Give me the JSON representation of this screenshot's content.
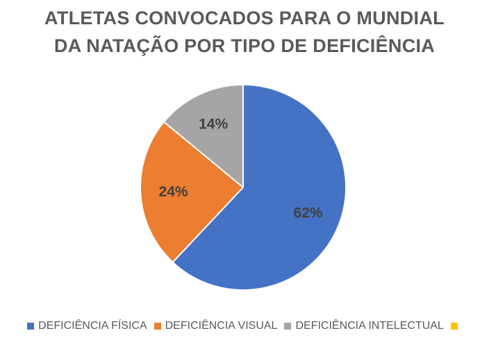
{
  "chart_data": {
    "type": "pie",
    "title_lines": [
      "ATLETAS CONVOCADOS PARA O MUNDIAL",
      "DA NATAÇÃO POR TIPO DE DEFICIÊNCIA"
    ],
    "categories": [
      "DEFICIÊNCIA FÍSICA",
      "DEFICIÊNCIA VISUAL",
      "DEFICIÊNCIA INTELECTUAL",
      ""
    ],
    "values": [
      62,
      24,
      14,
      0
    ],
    "data_labels": [
      "62%",
      "24%",
      "14%",
      ""
    ],
    "colors": [
      "#4472C4",
      "#ED7D31",
      "#A5A5A5",
      "#FFC000"
    ],
    "legend_position": "bottom"
  }
}
